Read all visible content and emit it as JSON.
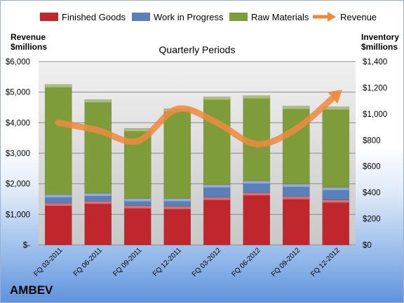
{
  "company": "AMBEV",
  "chart_data": {
    "type": "bar",
    "title": "Quarterly Periods",
    "left_axis_title": [
      "Revenue",
      "$millions"
    ],
    "right_axis_title": [
      "Inventory",
      "$millions"
    ],
    "categories": [
      "FQ 03-2011",
      "FQ 06-2011",
      "FQ 09-2011",
      "FQ 12-2011",
      "FQ 03-2012",
      "FQ 06-2012",
      "FQ 09-2012",
      "FQ 12-2012"
    ],
    "stacked": true,
    "left_ticks": [
      "$-",
      "$1,000",
      "$2,000",
      "$3,000",
      "$4,000",
      "$5,000",
      "$6,000"
    ],
    "right_ticks": [
      "$0",
      "$200",
      "$400",
      "$600",
      "$800",
      "$1,000",
      "$1,200",
      "$1,400"
    ],
    "ylim_left": [
      0,
      6000
    ],
    "ylim_right": [
      0,
      1400
    ],
    "series": [
      {
        "name": "Finished Goods",
        "axis": "right",
        "color": "#c0272d",
        "values": [
          320,
          335,
          300,
          295,
          365,
          400,
          370,
          345
        ]
      },
      {
        "name": "Work in Progress",
        "axis": "right",
        "color": "#5b7fba",
        "values": [
          65,
          60,
          55,
          60,
          95,
          90,
          95,
          95
        ]
      },
      {
        "name": "Raw Materials",
        "axis": "right",
        "color": "#7e9d3a",
        "values": [
          840,
          715,
          535,
          685,
          670,
          650,
          595,
          615
        ]
      }
    ],
    "line": {
      "name": "Revenue",
      "axis": "left",
      "color": "#ee8a3e",
      "values": [
        4000,
        3750,
        3400,
        4450,
        4000,
        3300,
        3800,
        4900
      ]
    },
    "legend_position": "top",
    "grid": true
  }
}
